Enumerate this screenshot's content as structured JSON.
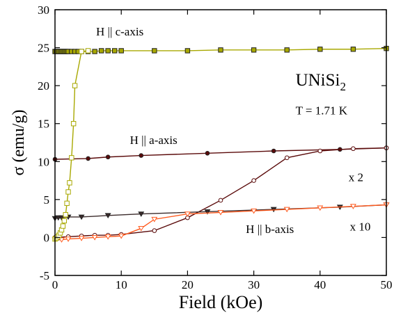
{
  "chart_data": {
    "type": "scatter",
    "xlabel": "Field (kOe)",
    "ylabel": "σ (emu/g)",
    "xlim": [
      0,
      50
    ],
    "ylim": [
      -5,
      30
    ],
    "xticks": [
      0,
      10,
      20,
      30,
      40,
      50
    ],
    "yticks": [
      -5,
      0,
      5,
      10,
      15,
      20,
      25,
      30
    ],
    "grid": false,
    "annotations": [
      {
        "key": "c_axis",
        "text": "H || c-axis"
      },
      {
        "key": "a_axis",
        "text": "H || a-axis"
      },
      {
        "key": "b_axis",
        "text": "H || b-axis"
      },
      {
        "key": "x2",
        "text": "x 2"
      },
      {
        "key": "x10",
        "text": "x 10"
      },
      {
        "key": "temp",
        "text": "T = 1.71 K"
      }
    ],
    "compound": {
      "base": "UNiSi",
      "subscript": "2"
    },
    "series": [
      {
        "key": "c_up",
        "color": "#a8a800",
        "marker": "square-filled",
        "x": [
          0.0,
          0.2,
          0.4,
          0.6,
          0.8,
          1.0,
          1.2,
          1.4,
          1.6,
          1.8,
          2.0,
          2.5,
          3.0,
          3.5,
          4.0,
          5.0,
          6.0,
          7.0,
          8.0,
          9.0,
          10.0,
          15.0,
          20.0,
          25.0,
          30.0,
          35.0,
          40.0,
          45.0,
          50.0
        ],
        "y": [
          24.5,
          24.5,
          24.5,
          24.5,
          24.5,
          24.5,
          24.5,
          24.5,
          24.5,
          24.5,
          24.5,
          24.5,
          24.5,
          24.5,
          24.5,
          24.5,
          24.5,
          24.6,
          24.6,
          24.6,
          24.6,
          24.6,
          24.6,
          24.7,
          24.7,
          24.7,
          24.8,
          24.8,
          24.9
        ]
      },
      {
        "key": "c_virgin",
        "color": "#a8a800",
        "marker": "square-open",
        "x": [
          0.0,
          0.2,
          0.4,
          0.6,
          0.8,
          1.0,
          1.2,
          1.4,
          1.6,
          1.8,
          2.0,
          2.2,
          2.5,
          2.8,
          3.0,
          4.0,
          5.0
        ],
        "y": [
          -0.2,
          -0.1,
          0.1,
          0.3,
          0.6,
          1.0,
          1.5,
          2.2,
          3.0,
          4.5,
          6.0,
          7.2,
          10.5,
          15.0,
          20.0,
          24.5,
          24.6
        ]
      },
      {
        "key": "a_axis",
        "color": "#5a0a0a",
        "marker": "circle-filled",
        "x": [
          0.0,
          5.0,
          8.0,
          13.0,
          23.0,
          33.0,
          43.0,
          50.0
        ],
        "y": [
          10.3,
          10.4,
          10.6,
          10.8,
          11.1,
          11.4,
          11.6,
          11.8
        ]
      },
      {
        "key": "a_x2",
        "color": "#5a0a0a",
        "marker": "circle-open",
        "x": [
          0.0,
          2.0,
          4.0,
          6.0,
          8.0,
          10.0,
          15.0,
          20.0,
          25.0,
          30.0,
          35.0,
          40.0,
          45.0,
          50.0
        ],
        "y": [
          0.0,
          0.1,
          0.2,
          0.3,
          0.3,
          0.4,
          0.9,
          2.6,
          4.9,
          7.5,
          10.5,
          11.4,
          11.7,
          11.8
        ]
      },
      {
        "key": "b_axis",
        "color": "#3a2a2a",
        "marker": "triangle-filled",
        "x": [
          0.0,
          0.5,
          1.0,
          2.0,
          4.0,
          8.0,
          13.0,
          23.0,
          33.0,
          43.0,
          50.0
        ],
        "y": [
          2.5,
          2.6,
          2.6,
          2.7,
          2.7,
          2.9,
          3.1,
          3.4,
          3.7,
          4.0,
          4.3
        ]
      },
      {
        "key": "b_x10",
        "color": "#ff5a1e",
        "marker": "triangle-open",
        "x": [
          0.0,
          1.0,
          2.0,
          4.0,
          6.0,
          8.0,
          10.0,
          13.0,
          15.0,
          20.0,
          25.0,
          30.0,
          35.0,
          40.0,
          45.0,
          50.0
        ],
        "y": [
          -0.3,
          -0.3,
          -0.2,
          -0.1,
          0.0,
          0.1,
          0.2,
          1.2,
          2.4,
          3.1,
          3.3,
          3.5,
          3.7,
          3.9,
          4.1,
          4.3
        ]
      }
    ]
  }
}
